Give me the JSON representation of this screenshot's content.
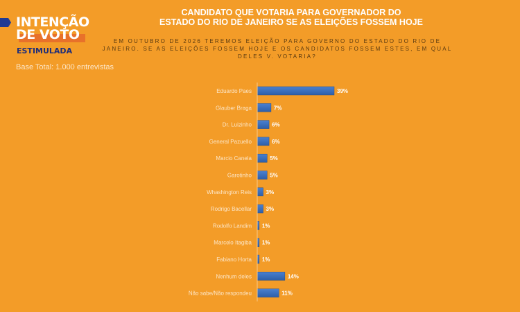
{
  "header": {
    "brand_line1": "INTENÇÃO",
    "brand_line2": "DE VOTO",
    "subtitle": "ESTIMULADA",
    "base": "Base Total: 1.000 entrevistas",
    "title_line1": "CANDIDATO QUE VOTARIA PARA GOVERNADOR DO",
    "title_line2": "ESTADO DO RIO DE JANEIRO SE AS ELEIÇÕES FOSSEM HOJE",
    "question": "EM OUTUBRO DE 2026 TEREMOS ELEIÇÃO PARA GOVERNO DO ESTADO DO RIO DE JANEIRO. SE AS ELEIÇÕES FOSSEM HOJE E OS CANDIDATOS FOSSEM ESTES, EM QUAL DELES V. VOTARIA?"
  },
  "colors": {
    "background": "#F39C28",
    "bar": "#3A6FC0",
    "accent": "#1F3A93"
  },
  "chart_data": {
    "type": "bar",
    "orientation": "horizontal",
    "title": "CANDIDATO QUE VOTARIA PARA GOVERNADOR DO ESTADO DO RIO DE JANEIRO SE AS ELEIÇÕES FOSSEM HOJE",
    "categories": [
      "Eduardo Paes",
      "Glauber Braga",
      "Dr. Luizinho",
      "General Pazuello",
      "Marcio Canela",
      "Garotinho",
      "Whashington Reis",
      "Rodrigo Bacellar",
      "Rodolfo Landim",
      "Marcelo Itagiba",
      "Fabiano Horta",
      "Nenhum deles",
      "Não sabe/Não respondeu"
    ],
    "values": [
      39,
      7,
      6,
      6,
      5,
      5,
      3,
      3,
      1,
      1,
      1,
      14,
      11
    ],
    "value_labels": [
      "39%",
      "7%",
      "6%",
      "6%",
      "5%",
      "5%",
      "3%",
      "3%",
      "1%",
      "1%",
      "1%",
      "14%",
      "11%"
    ],
    "xlim": [
      0,
      40
    ],
    "grid": false
  }
}
